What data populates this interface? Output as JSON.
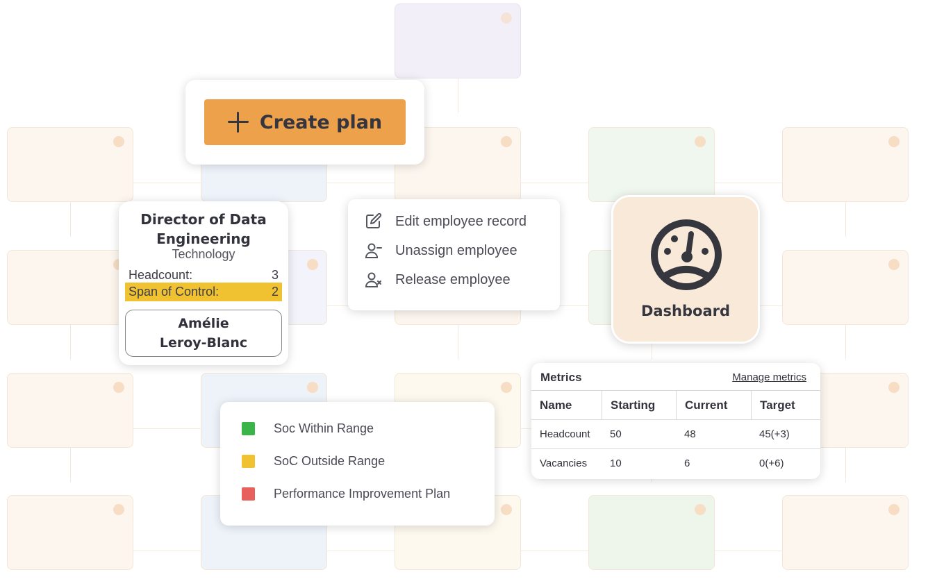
{
  "create_plan": {
    "label": "Create plan"
  },
  "director_card": {
    "title": "Director of Data Engineering",
    "department": "Technology",
    "rows": [
      {
        "label": "Headcount:",
        "value": "3"
      },
      {
        "label": "Span of Control:",
        "value": "2"
      }
    ],
    "person_first": "Amélie",
    "person_last": "Leroy-Blanc"
  },
  "employee_menu": {
    "items": [
      {
        "label": "Edit employee record",
        "icon": "edit-icon"
      },
      {
        "label": "Unassign employee",
        "icon": "user-minus-icon"
      },
      {
        "label": "Release employee",
        "icon": "user-remove-icon"
      }
    ]
  },
  "dashboard": {
    "label": "Dashboard",
    "icon": "gauge-icon"
  },
  "metrics": {
    "title": "Metrics",
    "manage_label": "Manage metrics",
    "columns": [
      "Name",
      "Starting",
      "Current",
      "Target"
    ],
    "rows": [
      [
        "Headcount",
        "50",
        "48",
        "45(+3)"
      ],
      [
        "Vacancies",
        "10",
        "6",
        "0(+6)"
      ]
    ]
  },
  "legend": {
    "items": [
      {
        "label": "Soc Within Range",
        "color": "#3bb54a"
      },
      {
        "label": "SoC Outside Range",
        "color": "#f0c232"
      },
      {
        "label": "Performance Improvement Plan",
        "color": "#e8605c"
      }
    ]
  },
  "colors": {
    "accent_orange": "#eca14a",
    "highlight_yellow": "#f0c232",
    "dashboard_bg": "#f8e9d9",
    "text_dark": "#33333c"
  }
}
